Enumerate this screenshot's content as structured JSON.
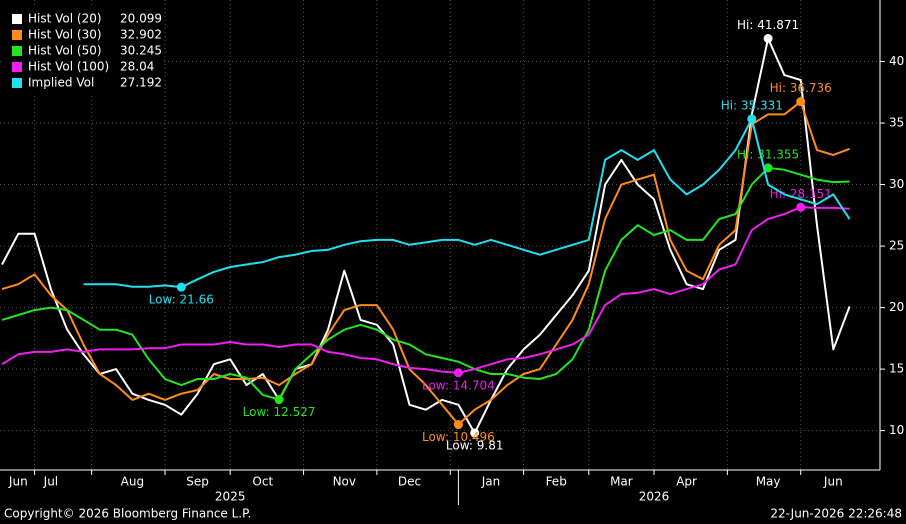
{
  "chart_data": {
    "type": "line",
    "categories": [
      null,
      "Jun",
      null,
      "Jul",
      null,
      null,
      null,
      null,
      "Aug",
      null,
      null,
      null,
      "Sep",
      null,
      null,
      null,
      "Oct",
      null,
      null,
      null,
      null,
      "Nov",
      null,
      null,
      null,
      "Dec",
      null,
      null,
      null,
      null,
      "Jan",
      null,
      null,
      null,
      "Feb",
      null,
      null,
      null,
      "Mar",
      null,
      null,
      null,
      "Apr",
      null,
      null,
      null,
      null,
      "May",
      null,
      null,
      null,
      "Jun",
      null
    ],
    "years": [
      {
        "label": "2025",
        "from": 0
      },
      {
        "label": "2026",
        "from": 28
      }
    ],
    "ylim": [
      6.8,
      45.0
    ],
    "yticks": [
      10,
      15,
      20,
      25,
      30,
      35,
      40
    ],
    "grid": true,
    "series": [
      {
        "name": "Hist Vol (20)",
        "color": "#ffffff",
        "high_label": "Hi: 41.871",
        "low_label": "Low: 9.81",
        "values": [
          23.5,
          26,
          26,
          21.5,
          18.2,
          16.2,
          14.6,
          15,
          13,
          12.5,
          12.1,
          11.3,
          13,
          15.4,
          15.8,
          13.7,
          14.6,
          12.5,
          15,
          15.4,
          18.2,
          23,
          19,
          18.6,
          17,
          12.1,
          11.7,
          12.5,
          12.1,
          9.81,
          12.5,
          15,
          16.6,
          17.8,
          19.4,
          21,
          23,
          30,
          32,
          30,
          28.8,
          24.7,
          21.9,
          21.5,
          24.7,
          25.5,
          35.7,
          41.871,
          38.9,
          38.5,
          26.7,
          16.6,
          20.099
        ]
      },
      {
        "name": "Hist Vol (30)",
        "color": "#ff8c1a",
        "high_label": "Hi: 36.736",
        "low_label": "Low: 10.496",
        "values": [
          21.5,
          21.9,
          22.7,
          21,
          19.8,
          17,
          14.6,
          13.7,
          12.5,
          13,
          12.5,
          13,
          13.3,
          14.6,
          14.2,
          14.2,
          14.3,
          13.7,
          14.6,
          15.4,
          17.8,
          19.8,
          20.2,
          20.2,
          18.2,
          15,
          13.7,
          12.1,
          10.496,
          11.7,
          12.5,
          13.7,
          14.6,
          15,
          17,
          19,
          21.9,
          27.2,
          30,
          30.4,
          30.8,
          25.5,
          23,
          22.3,
          25.1,
          26.3,
          34.9,
          35.7,
          35.7,
          36.736,
          32.8,
          32.4,
          32.902
        ]
      },
      {
        "name": "Hist Vol (50)",
        "color": "#22e51f",
        "high_label": "Hi: 31.355",
        "low_label": "Low: 12.527",
        "values": [
          19,
          19.4,
          19.8,
          20,
          19.8,
          19,
          18.2,
          18.2,
          17.8,
          15.8,
          14.2,
          13.7,
          14.2,
          14.2,
          14.6,
          14.3,
          12.9,
          12.527,
          15,
          16.2,
          17.4,
          18.2,
          18.6,
          18.2,
          17.4,
          17,
          16.2,
          15.9,
          15.6,
          15,
          14.6,
          14.6,
          14.3,
          14.2,
          14.6,
          15.8,
          18.2,
          23,
          25.5,
          26.7,
          25.9,
          26.3,
          25.5,
          25.5,
          27.2,
          27.6,
          30,
          31.355,
          31.2,
          30.8,
          30.4,
          30.2,
          30.245
        ]
      },
      {
        "name": "Hist Vol (100)",
        "color": "#f01ef0",
        "high_label": "Hi: 28.151",
        "low_label": "Low: 14.704",
        "values": [
          15.4,
          16.2,
          16.4,
          16.4,
          16.6,
          16.4,
          16.6,
          16.6,
          16.6,
          16.7,
          16.7,
          17,
          17,
          17,
          17.2,
          17,
          17,
          16.8,
          17,
          17,
          16.4,
          16.2,
          15.9,
          15.8,
          15.4,
          15.1,
          15,
          14.8,
          14.704,
          15,
          15.4,
          15.8,
          15.9,
          16.2,
          16.6,
          17,
          17.8,
          20.2,
          21.1,
          21.2,
          21.5,
          21.1,
          21.5,
          21.9,
          23.1,
          23.5,
          26.3,
          27.2,
          27.6,
          28.151,
          28.1,
          28.1,
          28.04
        ]
      },
      {
        "name": "Implied Vol",
        "color": "#20e0f0",
        "high_label": "Hi: 35.331",
        "low_label": "Low: 21.66",
        "values": [
          null,
          null,
          null,
          null,
          null,
          21.9,
          21.9,
          21.9,
          21.7,
          21.7,
          21.8,
          21.66,
          22.3,
          22.9,
          23.3,
          23.5,
          23.7,
          24.1,
          24.3,
          24.6,
          24.7,
          25.1,
          25.4,
          25.5,
          25.5,
          25.1,
          25.3,
          25.5,
          25.5,
          25.1,
          25.5,
          25.1,
          24.7,
          24.3,
          24.7,
          25.1,
          25.5,
          32,
          32.8,
          32,
          32.8,
          30.4,
          29.2,
          30,
          31.2,
          32.8,
          35.331,
          30,
          29.2,
          28.8,
          28.4,
          29.2,
          27.192
        ]
      }
    ]
  },
  "footer": {
    "copyright": "Copyright© 2026 Bloomberg Finance L.P.",
    "timestamp": "22-Jun-2026 22:26:48"
  }
}
